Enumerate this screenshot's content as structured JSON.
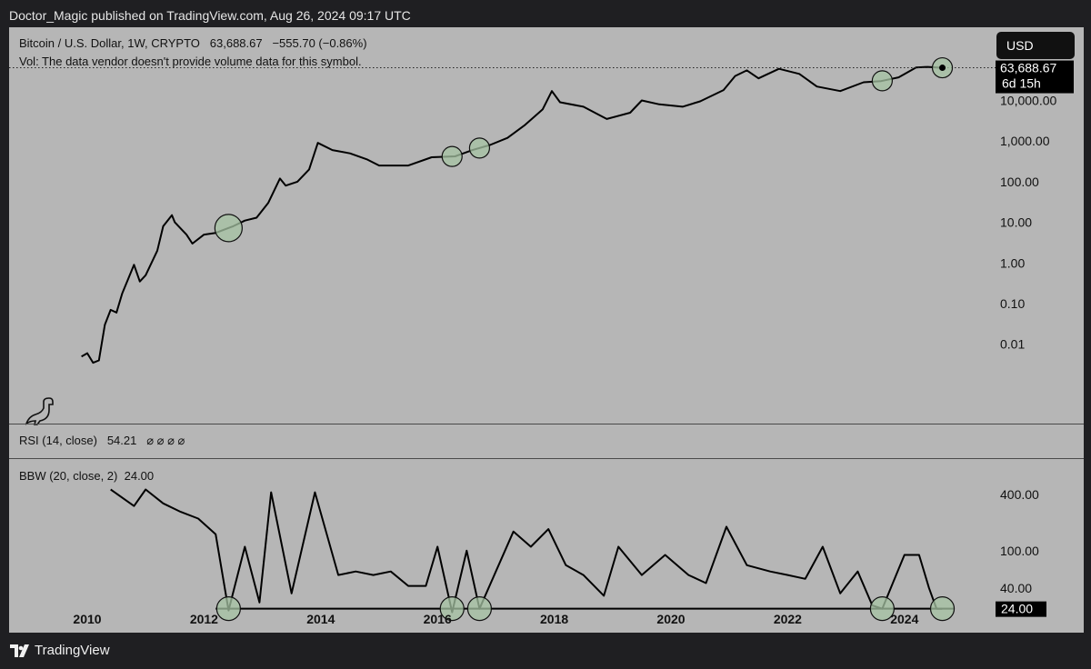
{
  "header": {
    "published": "Doctor_Magic published on TradingView.com, Aug 26, 2024 09:17 UTC"
  },
  "main_pane": {
    "symbol": "Bitcoin / U.S. Dollar, 1W, CRYPTO",
    "price": "63,688.67",
    "change": "−555.70 (−0.86%)",
    "vol_note": "Vol: The data vendor doesn't provide volume data for this symbol.",
    "currency_button": "USD",
    "price_tag": "63,688.67",
    "countdown": "6d 15h"
  },
  "rsi_pane": {
    "label": "RSI (14, close)",
    "value": "54.21",
    "placeholders": "⌀ ⌀ ⌀ ⌀"
  },
  "bbw_pane": {
    "label": "BBW (20, close, 2)",
    "value": "24.00",
    "value_tag": "24.00"
  },
  "footer": {
    "brand": "TradingView"
  },
  "colors": {
    "panel_bg": "#b6b6b6",
    "page_bg": "#1f1f22",
    "line": "#000000",
    "circle_fill": "#a6c3a3"
  },
  "chart_data": [
    {
      "type": "line",
      "title": "Bitcoin / U.S. Dollar, 1W, CRYPTO",
      "yscale": "log",
      "y_tick_labels": [
        "10,000.00",
        "1,000.00",
        "100.00",
        "10.00",
        "1.00",
        "0.10",
        "0.01"
      ],
      "y_ticks": [
        10000,
        1000,
        100,
        10,
        1,
        0.1,
        0.01
      ],
      "x_tick_labels": [
        "2010",
        "2012",
        "2014",
        "2016",
        "2018",
        "2020",
        "2022",
        "2024"
      ],
      "series": [
        {
          "x": [
            2009.9,
            2010.0,
            2010.1,
            2010.2,
            2010.3,
            2010.4,
            2010.5,
            2010.6,
            2010.7,
            2010.8,
            2010.9,
            2011.0,
            2011.2,
            2011.3,
            2011.45,
            2011.5,
            2011.7,
            2011.8,
            2012.0,
            2012.2,
            2012.5,
            2012.7,
            2012.9,
            2013.1,
            2013.3,
            2013.4,
            2013.6,
            2013.8,
            2013.95,
            2014.2,
            2014.5,
            2014.8,
            2015.0,
            2015.5,
            2015.9,
            2016.3,
            2016.6,
            2016.9,
            2017.2,
            2017.5,
            2017.8,
            2017.96,
            2018.1,
            2018.5,
            2018.9,
            2019.3,
            2019.5,
            2019.8,
            2020.2,
            2020.5,
            2020.9,
            2021.1,
            2021.3,
            2021.5,
            2021.85,
            2022.2,
            2022.5,
            2022.9,
            2023.3,
            2023.6,
            2023.9,
            2024.2,
            2024.4,
            2024.65
          ],
          "y": [
            0.005,
            0.006,
            0.0035,
            0.004,
            0.03,
            0.07,
            0.06,
            0.18,
            0.4,
            0.9,
            0.35,
            0.5,
            2.0,
            8.0,
            15.0,
            10.0,
            5.0,
            3.0,
            5.0,
            5.5,
            8.0,
            11.0,
            13.0,
            30.0,
            120.0,
            80.0,
            100.0,
            200.0,
            900.0,
            600.0,
            500.0,
            350.0,
            250.0,
            250.0,
            400.0,
            420.0,
            600.0,
            800.0,
            1200.0,
            2500.0,
            6000.0,
            17000.0,
            9000.0,
            7000.0,
            3500.0,
            5000.0,
            10000.0,
            8000.0,
            7000.0,
            9500.0,
            18000.0,
            40000.0,
            55000.0,
            35000.0,
            60000.0,
            45000.0,
            22000.0,
            17000.0,
            28000.0,
            30000.0,
            37000.0,
            65000.0,
            67000.0,
            63688.67
          ]
        }
      ],
      "last_value": 63688.67
    },
    {
      "type": "line",
      "title": "RSI (14, close)",
      "last_value": 54.21
    },
    {
      "type": "line",
      "title": "BBW (20, close, 2)",
      "yscale": "log",
      "y_tick_labels": [
        "400.00",
        "100.00",
        "40.00"
      ],
      "y_ticks": [
        400,
        100,
        40
      ],
      "x_tick_labels": [
        "2010",
        "2012",
        "2014",
        "2016",
        "2018",
        "2020",
        "2022",
        "2024"
      ],
      "series": [
        {
          "x": [
            2010.4,
            2010.8,
            2011.0,
            2011.3,
            2011.6,
            2011.9,
            2012.2,
            2012.42,
            2012.7,
            2012.95,
            2013.15,
            2013.5,
            2013.9,
            2014.3,
            2014.6,
            2014.9,
            2015.2,
            2015.5,
            2015.8,
            2016.0,
            2016.25,
            2016.5,
            2016.72,
            2017.0,
            2017.3,
            2017.6,
            2017.9,
            2018.2,
            2018.5,
            2018.85,
            2019.1,
            2019.5,
            2019.9,
            2020.3,
            2020.6,
            2020.95,
            2021.3,
            2021.7,
            2022.0,
            2022.3,
            2022.6,
            2022.9,
            2023.2,
            2023.45,
            2023.62,
            2023.8,
            2024.0,
            2024.25,
            2024.42,
            2024.55,
            2024.65
          ],
          "y": [
            450,
            300,
            450,
            320,
            260,
            220,
            150,
            23,
            110,
            28,
            420,
            35,
            420,
            55,
            60,
            55,
            60,
            42,
            42,
            110,
            22,
            100,
            24,
            60,
            160,
            110,
            170,
            70,
            55,
            33,
            110,
            55,
            90,
            55,
            45,
            180,
            70,
            60,
            55,
            50,
            110,
            35,
            60,
            26,
            24,
            45,
            90,
            90,
            40,
            24,
            24
          ]
        }
      ],
      "threshold": 24.0,
      "last_value": 24.0
    }
  ]
}
